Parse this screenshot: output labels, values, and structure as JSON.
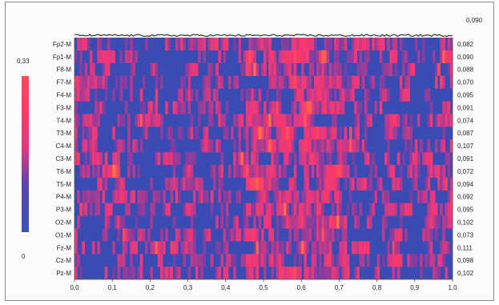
{
  "chart_data": {
    "type": "heatmap",
    "title": "",
    "xlabel": "",
    "ylabel": "",
    "xlim": [
      0.0,
      1.0
    ],
    "x_ticks": [
      "0,0",
      "0,1",
      "0,2",
      "0,3",
      "0,4",
      "0,5",
      "0,6",
      "0,7",
      "0,8",
      "0,9",
      "1,0"
    ],
    "rows": [
      "Fp2-M",
      "Fp1-M",
      "F8-M",
      "F7-M",
      "F4-M",
      "F3-M",
      "T4-M",
      "T3-M",
      "C4-M",
      "C3-M",
      "T6-M",
      "T5-M",
      "P4-M",
      "P3-M",
      "O2-M",
      "O1-M",
      "Fz-M",
      "Cz-M",
      "Pz-M"
    ],
    "row_values": [
      "0,082",
      "0,090",
      "0,088",
      "0,070",
      "0,095",
      "0,091",
      "0,074",
      "0,087",
      "0,107",
      "0,091",
      "0,072",
      "0,094",
      "0,092",
      "0,095",
      "0,102",
      "0,073",
      "0,111",
      "0,098",
      "0,102"
    ],
    "top_trace_value": "0,090",
    "colorbar": {
      "max_label": "0,33",
      "min_label": "0",
      "min": 0,
      "max": 0.33,
      "colors": [
        "#3a52b8",
        "#6a3fa8",
        "#e8387c",
        "#ff3a66",
        "#ff7a40"
      ]
    },
    "grid": false,
    "legend": "left colorbar"
  }
}
